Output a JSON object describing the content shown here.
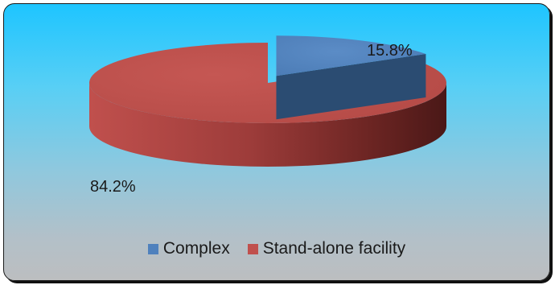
{
  "chart_data": {
    "type": "pie",
    "title": "",
    "categories": [
      "Complex",
      "Stand-alone facility"
    ],
    "values": [
      15.8,
      84.2
    ],
    "unit": "%",
    "data_labels": [
      "15.8%",
      "84.2%"
    ],
    "colors": [
      "#4f81bd",
      "#c0504d"
    ],
    "style": "3d-exploded",
    "legend_position": "bottom"
  },
  "legend": {
    "items": [
      {
        "label": "Complex",
        "color": "#4f81bd"
      },
      {
        "label": "Stand-alone facility",
        "color": "#c0504d"
      }
    ]
  }
}
